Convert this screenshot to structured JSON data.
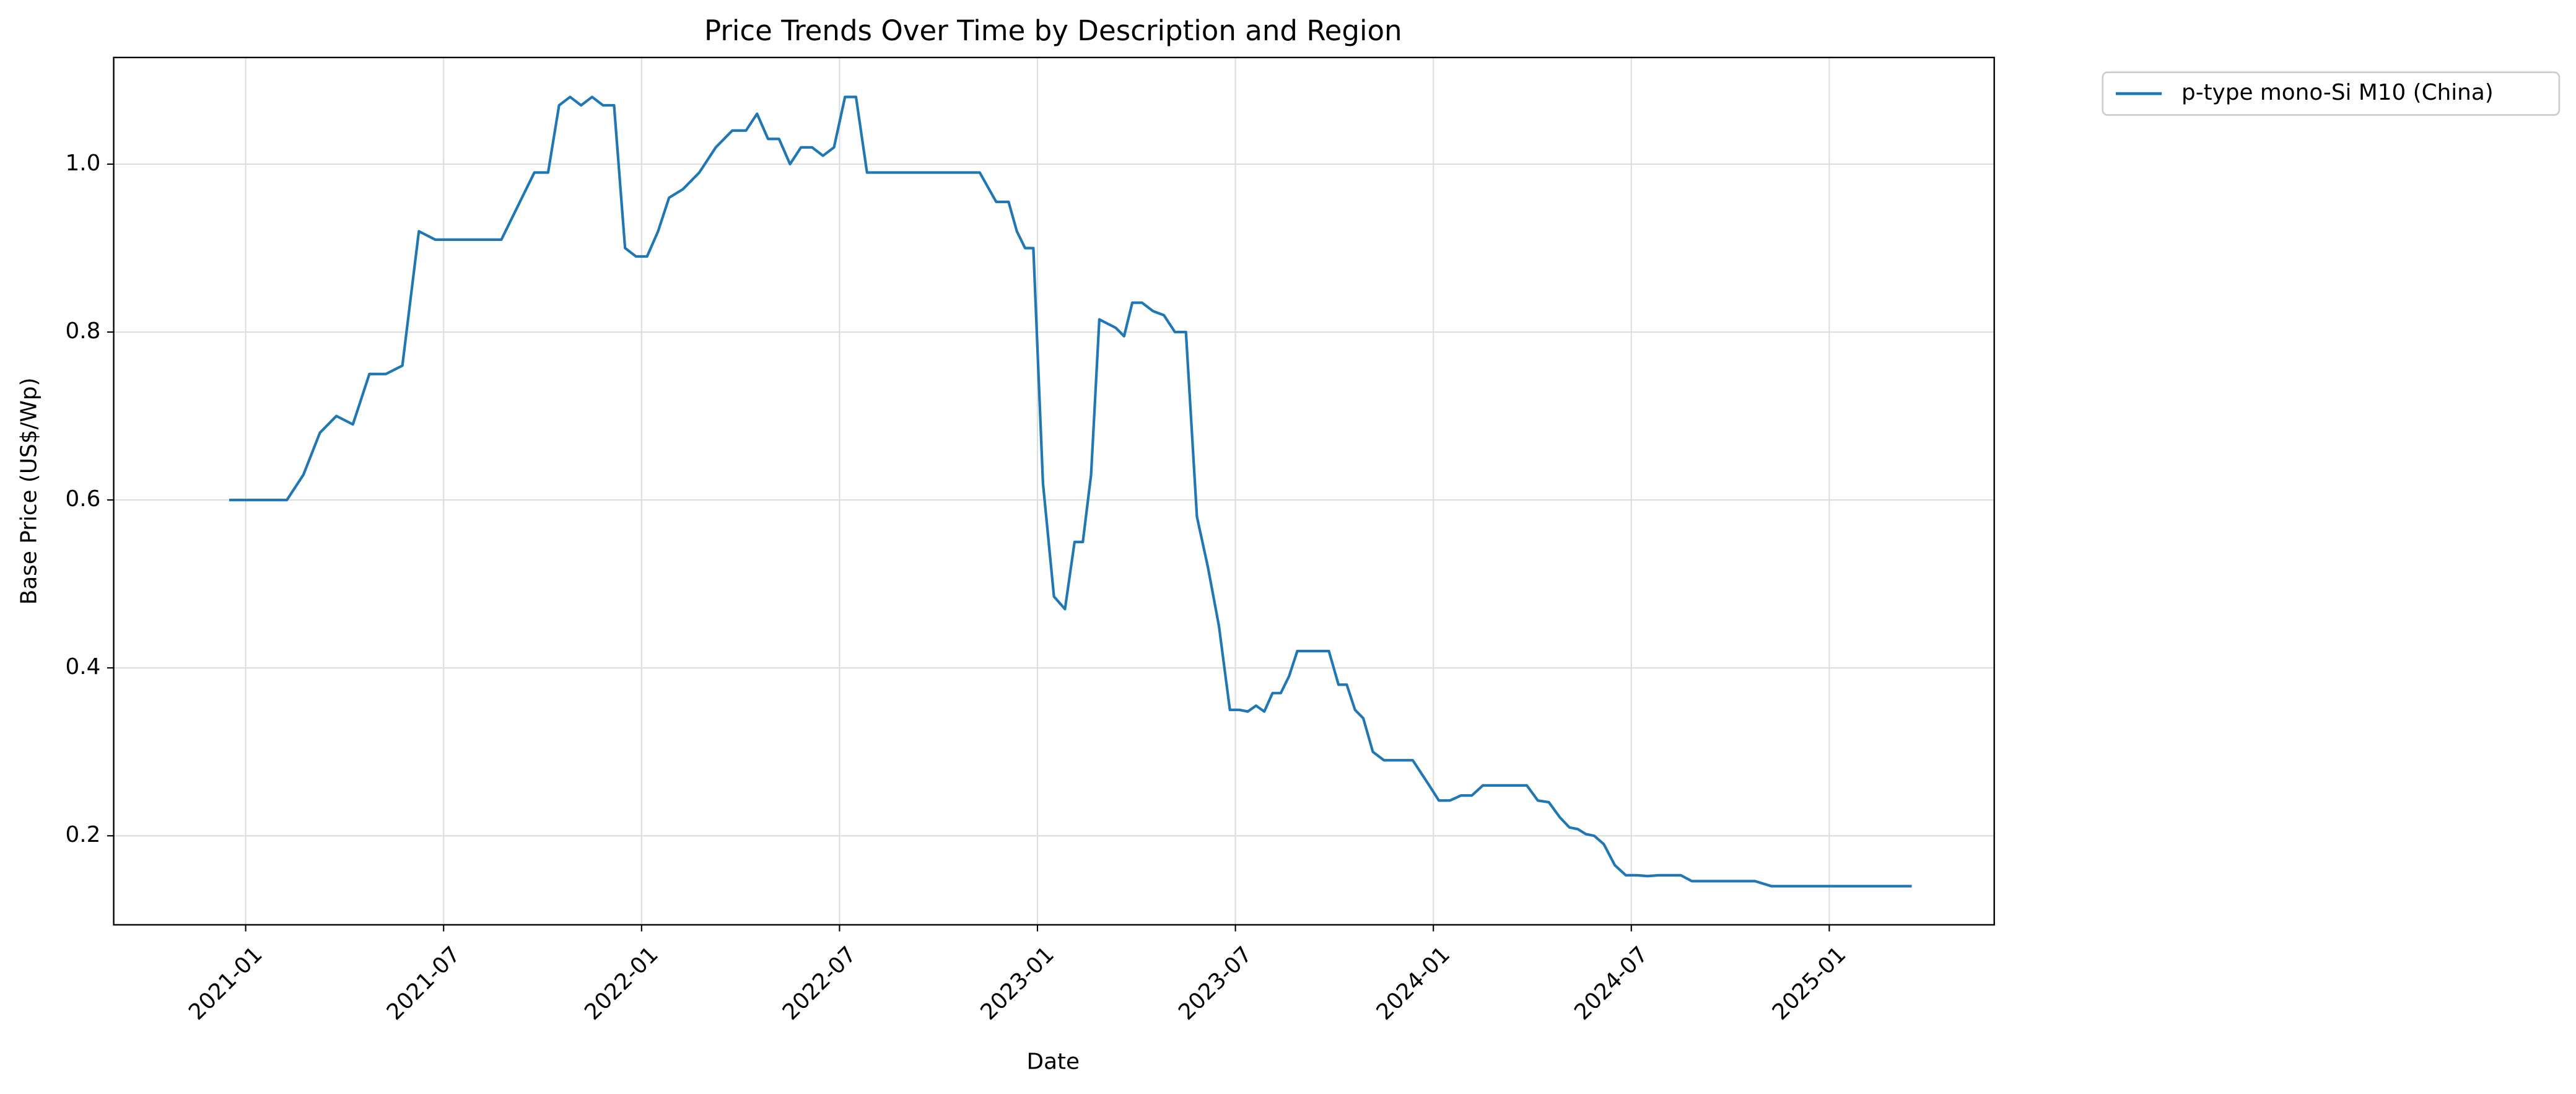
{
  "chart_data": {
    "type": "line",
    "title": "Price Trends Over Time by Description and Region",
    "xlabel": "Date",
    "ylabel": "Base Price (US$/Wp)",
    "x": [
      "2020-12",
      "2021-01",
      "2021-02",
      "2021-02",
      "2021-03",
      "2021-03",
      "2021-04",
      "2021-04",
      "2021-05",
      "2021-05",
      "2021-06",
      "2021-06",
      "2021-07",
      "2021-08",
      "2021-08",
      "2021-09",
      "2021-09",
      "2021-10",
      "2021-10",
      "2021-10",
      "2021-11",
      "2021-11",
      "2021-11",
      "2021-12",
      "2021-12",
      "2021-12",
      "2022-01",
      "2022-01",
      "2022-01",
      "2022-02",
      "2022-02",
      "2022-03",
      "2022-03",
      "2022-04",
      "2022-04",
      "2022-04",
      "2022-05",
      "2022-05",
      "2022-05",
      "2022-06",
      "2022-06",
      "2022-06",
      "2022-07",
      "2022-07",
      "2022-07",
      "2022-08",
      "2022-09",
      "2022-10",
      "2022-11",
      "2022-11",
      "2022-12",
      "2022-12",
      "2022-12",
      "2022-12",
      "2023-01",
      "2023-01",
      "2023-01",
      "2023-02",
      "2023-02",
      "2023-02",
      "2023-02",
      "2023-03",
      "2023-03",
      "2023-03",
      "2023-03",
      "2023-04",
      "2023-04",
      "2023-04",
      "2023-05",
      "2023-05",
      "2023-05",
      "2023-06",
      "2023-06",
      "2023-06",
      "2023-07",
      "2023-07",
      "2023-07",
      "2023-07",
      "2023-08",
      "2023-08",
      "2023-08",
      "2023-08",
      "2023-09",
      "2023-09",
      "2023-09",
      "2023-10",
      "2023-10",
      "2023-10",
      "2023-10",
      "2023-11",
      "2023-11",
      "2023-11",
      "2023-12",
      "2023-12",
      "2023-12",
      "2023-12",
      "2024-01",
      "2024-01",
      "2024-01",
      "2024-02",
      "2024-02",
      "2024-02",
      "2024-03",
      "2024-03",
      "2024-03",
      "2024-04",
      "2024-04",
      "2024-04",
      "2024-05",
      "2024-05",
      "2024-05",
      "2024-05",
      "2024-06",
      "2024-06",
      "2024-06",
      "2024-07",
      "2024-07",
      "2024-07",
      "2024-08",
      "2024-08",
      "2024-08",
      "2024-09",
      "2024-09",
      "2024-10",
      "2024-10",
      "2024-11",
      "2024-11",
      "2024-12",
      "2025-01",
      "2025-02",
      "2025-03"
    ],
    "series": [
      {
        "name": "p-type mono-Si M10 (China)",
        "color": "#1f77b4",
        "values": [
          0.6,
          0.6,
          0.6,
          0.63,
          0.68,
          0.7,
          0.69,
          0.75,
          0.75,
          0.76,
          0.92,
          0.91,
          0.91,
          0.91,
          0.91,
          0.95,
          0.99,
          0.99,
          1.07,
          1.08,
          1.07,
          1.08,
          1.07,
          1.07,
          0.9,
          0.89,
          0.89,
          0.92,
          0.96,
          0.97,
          0.99,
          1.02,
          1.04,
          1.04,
          1.06,
          1.03,
          1.03,
          1.0,
          1.02,
          1.02,
          1.01,
          1.02,
          1.08,
          1.08,
          0.99,
          0.99,
          0.99,
          0.99,
          0.99,
          0.955,
          0.955,
          0.92,
          0.9,
          0.9,
          0.62,
          0.485,
          0.47,
          0.55,
          0.55,
          0.63,
          0.815,
          0.81,
          0.805,
          0.795,
          0.835,
          0.835,
          0.825,
          0.82,
          0.8,
          0.8,
          0.58,
          0.52,
          0.45,
          0.35,
          0.35,
          0.348,
          0.355,
          0.348,
          0.37,
          0.37,
          0.39,
          0.42,
          0.42,
          0.42,
          0.42,
          0.38,
          0.38,
          0.35,
          0.34,
          0.3,
          0.29,
          0.29,
          0.29,
          0.29,
          0.275,
          0.26,
          0.242,
          0.242,
          0.248,
          0.248,
          0.26,
          0.26,
          0.26,
          0.26,
          0.26,
          0.242,
          0.24,
          0.222,
          0.21,
          0.208,
          0.202,
          0.2,
          0.19,
          0.165,
          0.153,
          0.153,
          0.152,
          0.153,
          0.153,
          0.153,
          0.146,
          0.146,
          0.146,
          0.146,
          0.146,
          0.14,
          0.14,
          0.14,
          0.14,
          0.14,
          0.14
        ]
      }
    ],
    "xlim": [
      "2020-09",
      "2025-06"
    ],
    "xticks": [
      "2021-01",
      "2021-07",
      "2022-01",
      "2022-07",
      "2023-01",
      "2023-07",
      "2024-01",
      "2024-07",
      "2025-01"
    ],
    "ylim": [
      0.094,
      1.127
    ],
    "yticks": [
      0.2,
      0.4,
      0.6,
      0.8,
      1.0
    ],
    "yticklabels": [
      "0.2",
      "0.4",
      "0.6",
      "0.8",
      "1.0"
    ],
    "grid": true,
    "legend": "outside-upper-right"
  }
}
